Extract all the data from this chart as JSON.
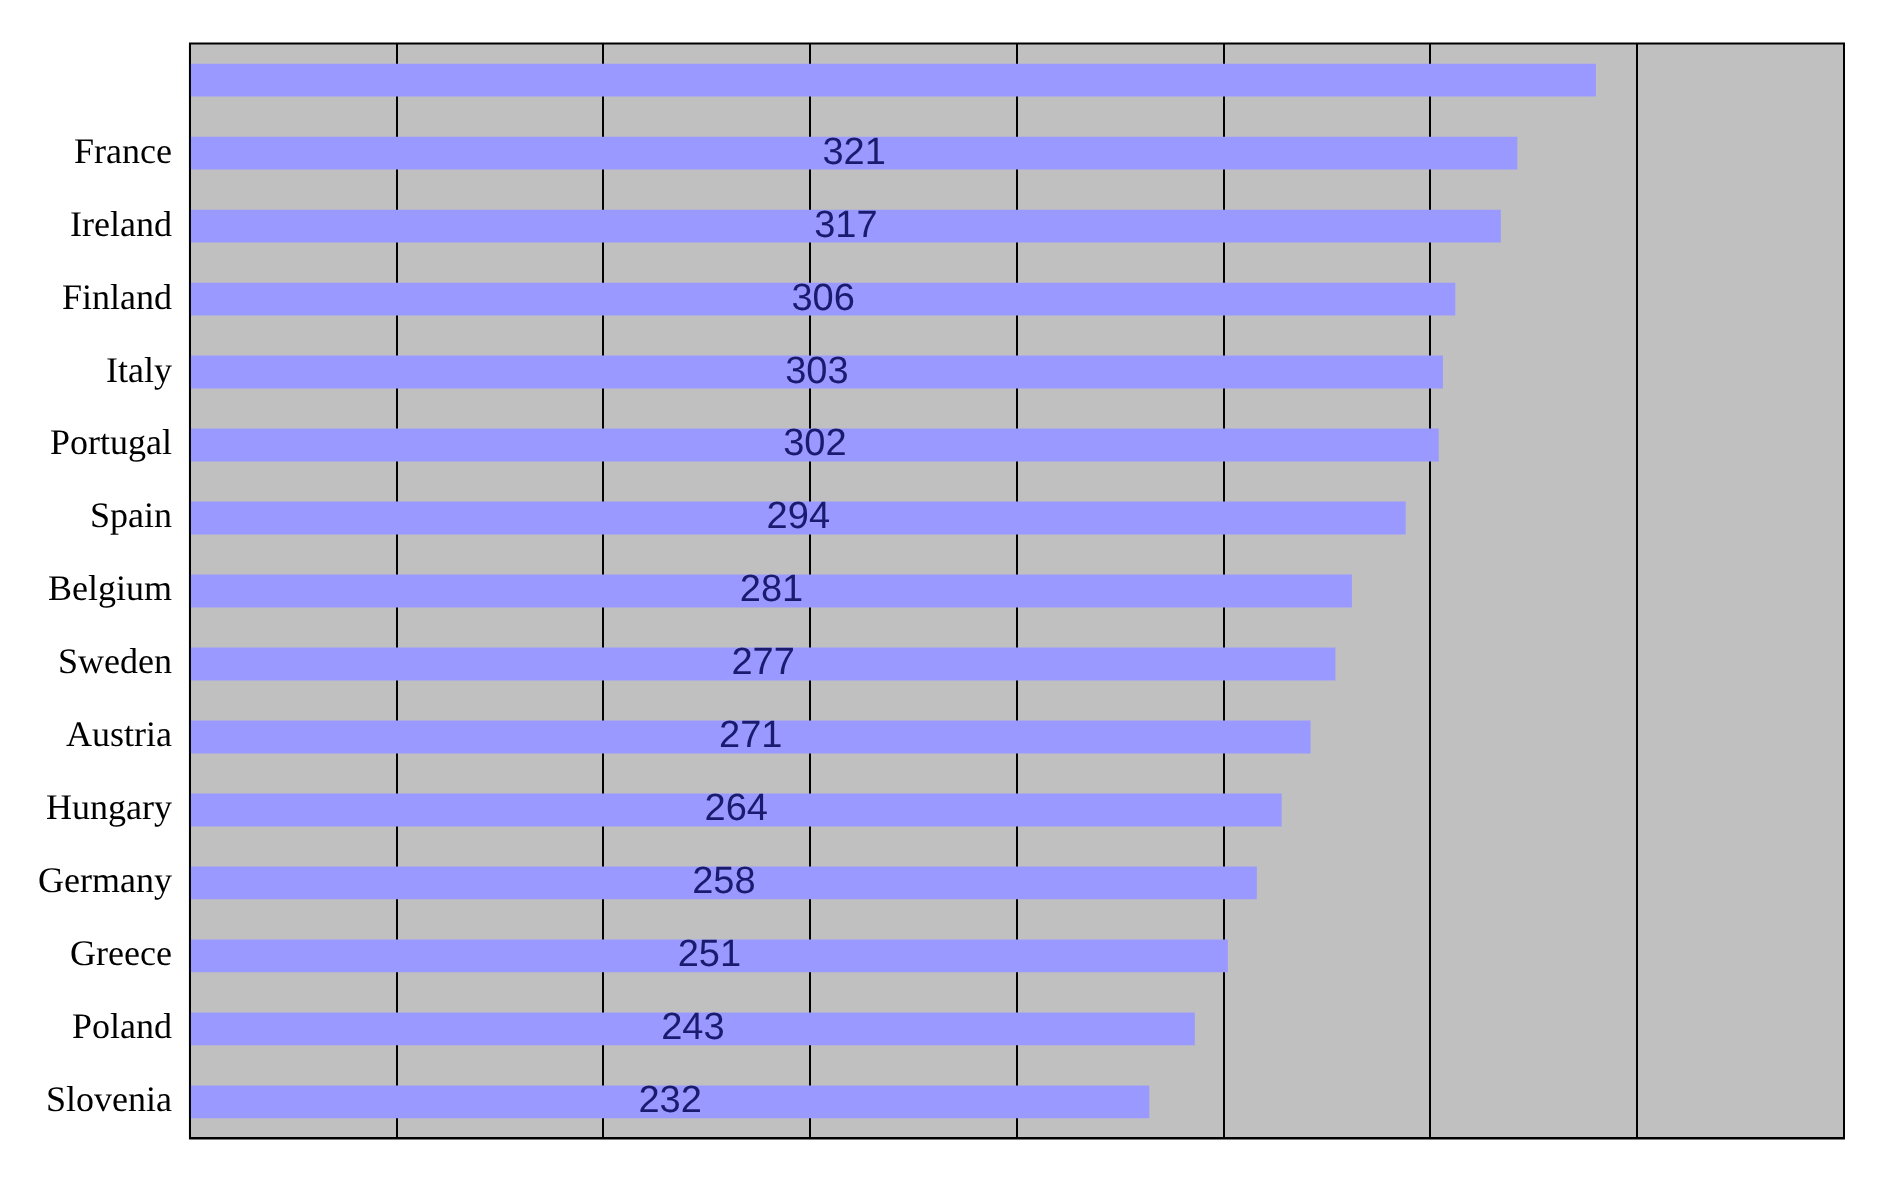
{
  "chart_data": {
    "type": "bar",
    "orientation": "horizontal",
    "categories": [
      null,
      "France",
      "Ireland",
      "Finland",
      "Italy",
      "Portugal",
      "Spain",
      "Belgium",
      "Sweden",
      "Austria",
      "Hungary",
      "Germany",
      "Greece",
      "Poland",
      "Slovenia"
    ],
    "values": [
      340,
      321,
      317,
      306,
      303,
      302,
      294,
      281,
      277,
      271,
      264,
      258,
      251,
      243,
      232
    ],
    "value_labels": [
      null,
      "321",
      "317",
      "306",
      "303",
      "302",
      "294",
      "281",
      "277",
      "271",
      "264",
      "258",
      "251",
      "243",
      "232"
    ],
    "color": "#9999ff",
    "xlim": [
      0,
      400
    ],
    "xticks": [
      {
        "value": 0,
        "label": null
      },
      {
        "value": 50,
        "label": null
      },
      {
        "value": 100,
        "label": null
      },
      {
        "value": 150,
        "label": null
      },
      {
        "value": 200,
        "label": null
      },
      {
        "value": 250,
        "label": null
      },
      {
        "value": 300,
        "label": null
      },
      {
        "value": 350,
        "label": null
      },
      {
        "value": 400,
        "label": null
      }
    ],
    "tick_labels": "y",
    "grid": "x",
    "legend": false
  }
}
